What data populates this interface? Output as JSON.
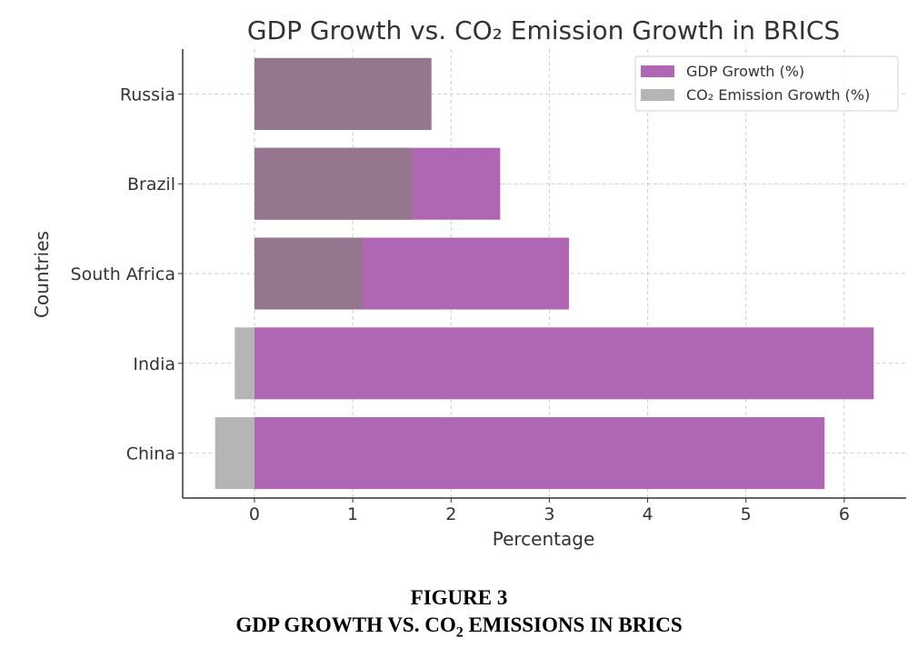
{
  "chart_data": {
    "type": "bar",
    "orientation": "horizontal",
    "title": "GDP Growth vs. CO₂ Emission Growth in BRICS",
    "xlabel": "Percentage",
    "ylabel": "Countries",
    "categories": [
      "Russia",
      "Brazil",
      "South Africa",
      "India",
      "China"
    ],
    "series": [
      {
        "name": "GDP Growth (%)",
        "values": [
          1.8,
          2.5,
          3.2,
          6.3,
          5.8
        ],
        "color": "#B067B3"
      },
      {
        "name": "CO₂ Emission Growth (%)",
        "values": [
          1.8,
          1.6,
          1.1,
          -0.2,
          -0.4
        ],
        "color": "#B5B5B5"
      }
    ],
    "overlap_color": "#94778F",
    "xlim": [
      -0.73,
      6.63
    ],
    "xticks": [
      0,
      1,
      2,
      3,
      4,
      5,
      6
    ],
    "grid": true,
    "legend": "top-right"
  },
  "figure": {
    "number": "FIGURE 3",
    "caption_parts": [
      "GDP GROWTH VS. CO",
      "2",
      " EMISSIONS IN BRICS"
    ]
  }
}
